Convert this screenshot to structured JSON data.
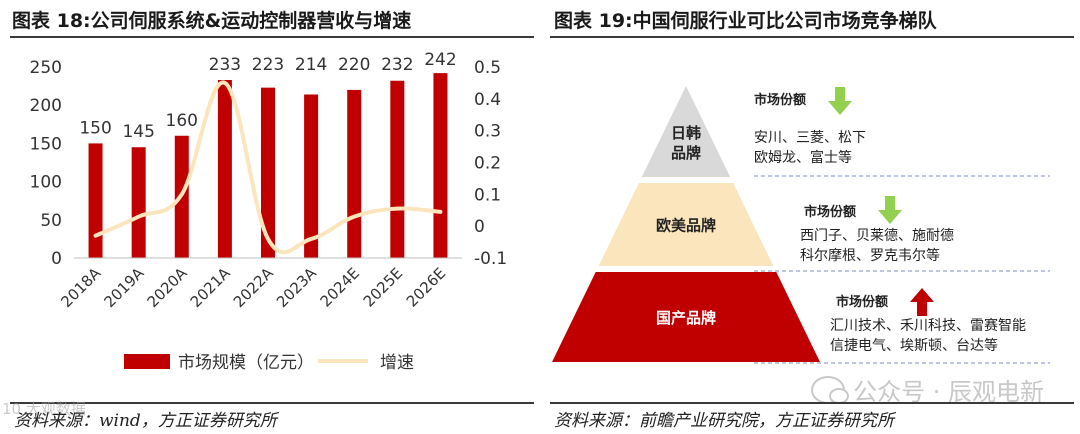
{
  "left": {
    "title": "图表 18:公司伺服系统&运动控制器营收与增速",
    "source": "资料来源：wind，方正证券研究所",
    "faint_mark": "10 大观数据"
  },
  "chart_data": {
    "type": "bar+line",
    "categories": [
      "2018A",
      "2019A",
      "2020A",
      "2021A",
      "2022A",
      "2023A",
      "2024E",
      "2025E",
      "2026E"
    ],
    "series": [
      {
        "name": "市场规模（亿元）",
        "type": "bar",
        "axis": "left",
        "values": [
          150,
          145,
          160,
          233,
          223,
          214,
          220,
          232,
          242
        ],
        "labels": [
          "150",
          "145",
          "160",
          "233",
          "223",
          "214",
          "220",
          "232",
          "242"
        ]
      },
      {
        "name": "增速",
        "type": "line",
        "axis": "right",
        "values": [
          -0.03,
          0.03,
          0.1,
          0.45,
          -0.04,
          -0.04,
          0.03,
          0.055,
          0.045
        ]
      }
    ],
    "y_left": {
      "min": 0,
      "max": 250,
      "ticks": [
        0,
        50,
        100,
        150,
        200,
        250
      ],
      "tick_labels": [
        "0",
        "50",
        "100",
        "150",
        "200",
        "250"
      ]
    },
    "y_right": {
      "min": -0.1,
      "max": 0.5,
      "ticks": [
        -0.1,
        0,
        0.1,
        0.2,
        0.3,
        0.4,
        0.5
      ],
      "tick_labels": [
        "-0.1",
        "0",
        "0.1",
        "0.2",
        "0.3",
        "0.4",
        "0.5"
      ]
    },
    "legend": [
      "市场规模（亿元）",
      "增速"
    ],
    "colors": {
      "bar": "#C00000",
      "line": "#FBE5BC"
    }
  },
  "right": {
    "title": "图表 19:中国伺服行业可比公司市场竞争梯队",
    "source": "资料来源：前瞻产业研究院，方正证券研究所",
    "tiers": [
      {
        "name_lines": [
          "日韩",
          "品牌"
        ],
        "share_label": "市场份额",
        "arrow": "down",
        "arrow_color": "#92D050",
        "brands": [
          "安川、三菱、松下",
          "欧姆龙、富士等"
        ],
        "fill": "#D9D9D9",
        "text_color": "#222222"
      },
      {
        "name_lines": [
          "欧美品牌"
        ],
        "share_label": "市场份额",
        "arrow": "down",
        "arrow_color": "#92D050",
        "brands": [
          "西门子、贝莱德、施耐德",
          "科尔摩根、罗克韦尔等"
        ],
        "fill": "#FBE5BC",
        "text_color": "#222222"
      },
      {
        "name_lines": [
          "国产品牌"
        ],
        "share_label": "市场份额",
        "arrow": "up",
        "arrow_color": "#C00000",
        "brands": [
          "汇川技术、禾川科技、雷赛智能",
          "信捷电气、埃斯顿、台达等"
        ],
        "fill": "#C00000",
        "text_color": "#ffffff"
      }
    ],
    "watermark": "公众号 · 辰观电新"
  }
}
